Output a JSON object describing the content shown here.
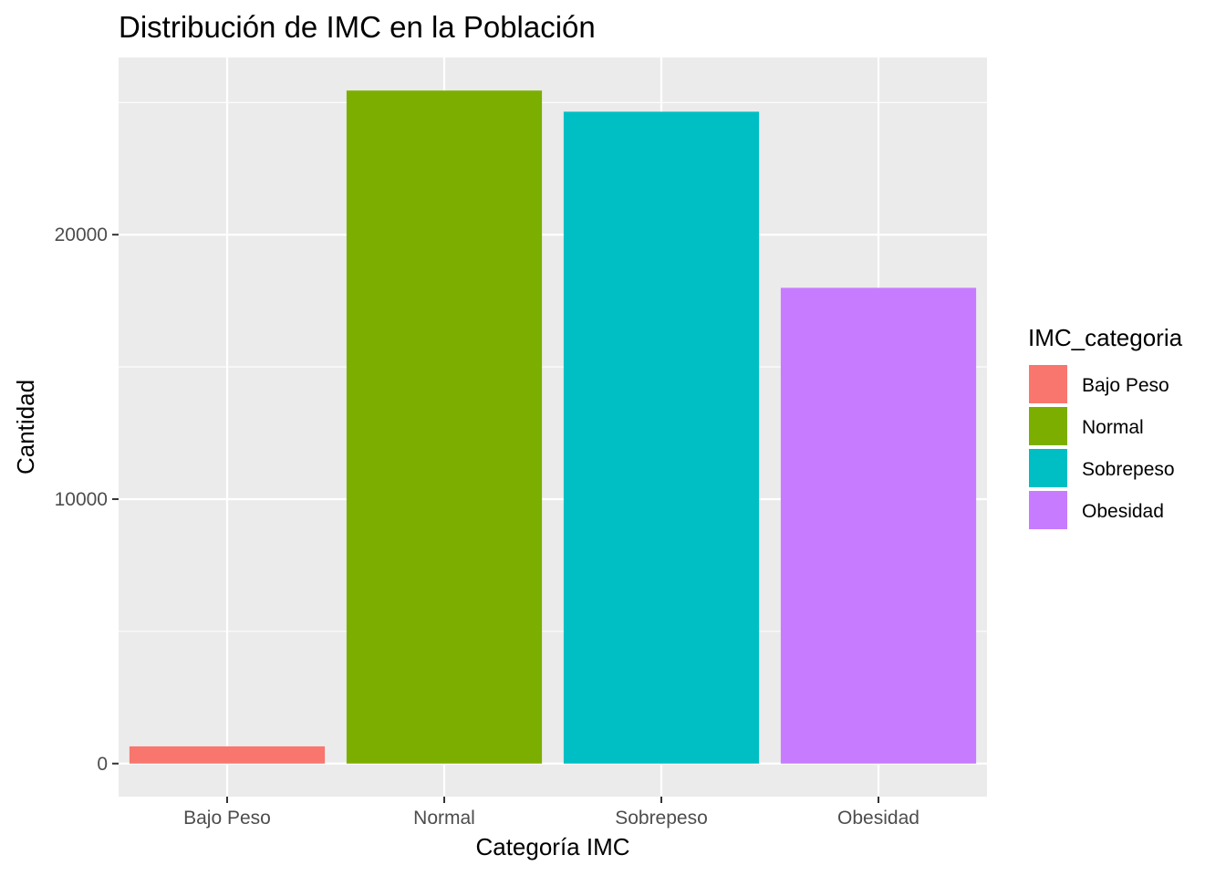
{
  "chart_data": {
    "type": "bar",
    "title": "Distribución de IMC en la Población",
    "xlabel": "Categoría IMC",
    "ylabel": "Cantidad",
    "categories": [
      "Bajo Peso",
      "Normal",
      "Sobrepeso",
      "Obesidad"
    ],
    "values": [
      650,
      25450,
      24650,
      17990
    ],
    "colors": [
      "#F8766D",
      "#7CAE00",
      "#00BFC4",
      "#C77CFF"
    ],
    "yticks": [
      0,
      10000,
      20000
    ],
    "ylim": [
      -1250,
      26700
    ],
    "grid": true,
    "panel_background": "#EBEBEB",
    "legend": {
      "title": "IMC_categoria",
      "entries": [
        "Bajo Peso",
        "Normal",
        "Sobrepeso",
        "Obesidad"
      ],
      "position": "right"
    }
  }
}
